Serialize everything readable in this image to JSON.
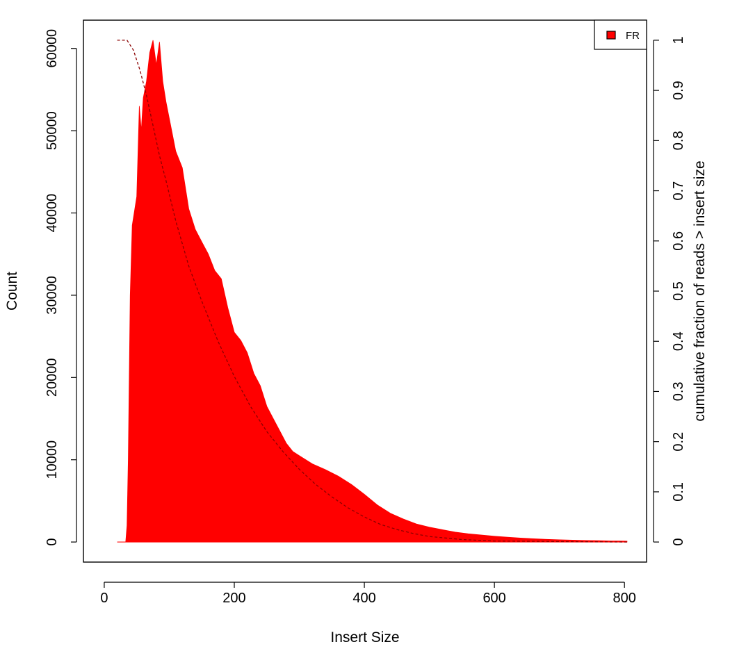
{
  "chart_data": {
    "type": "bar",
    "xlabel": "Insert Size",
    "ylabel": "Count",
    "y2label": "cumulative fraction of reads > insert size",
    "xlim": [
      -32,
      834
    ],
    "ylim": [
      -2440,
      63440
    ],
    "y2lim": [
      -0.04,
      1.04
    ],
    "xticks": [
      0,
      200,
      400,
      600,
      800
    ],
    "yticks": [
      0,
      10000,
      20000,
      30000,
      40000,
      50000,
      60000
    ],
    "y2ticks": [
      0,
      0.1,
      0.2,
      0.3,
      0.4,
      0.5,
      0.6,
      0.7,
      0.8,
      0.9,
      1
    ],
    "legend": {
      "position": "top-right",
      "entries": [
        "FR"
      ]
    },
    "grid": false,
    "series": [
      {
        "name": "FR",
        "kind": "histogram",
        "color": "#ff0000",
        "envelope_points": [
          [
            20,
            0
          ],
          [
            33,
            0
          ],
          [
            35,
            2000
          ],
          [
            37,
            10000
          ],
          [
            40,
            30000
          ],
          [
            43,
            38500
          ],
          [
            46,
            40000
          ],
          [
            50,
            42000
          ],
          [
            54,
            53000
          ],
          [
            57,
            50000
          ],
          [
            60,
            54000
          ],
          [
            65,
            56000
          ],
          [
            70,
            59500
          ],
          [
            75,
            61000
          ],
          [
            80,
            58000
          ],
          [
            85,
            60800
          ],
          [
            90,
            56000
          ],
          [
            95,
            53500
          ],
          [
            100,
            51500
          ],
          [
            110,
            47500
          ],
          [
            120,
            45500
          ],
          [
            130,
            40500
          ],
          [
            140,
            38000
          ],
          [
            150,
            36500
          ],
          [
            160,
            35000
          ],
          [
            170,
            33000
          ],
          [
            180,
            32000
          ],
          [
            190,
            28500
          ],
          [
            200,
            25500
          ],
          [
            210,
            24500
          ],
          [
            220,
            23000
          ],
          [
            230,
            20500
          ],
          [
            240,
            19000
          ],
          [
            250,
            16500
          ],
          [
            260,
            15000
          ],
          [
            270,
            13500
          ],
          [
            280,
            12000
          ],
          [
            290,
            11000
          ],
          [
            300,
            10500
          ],
          [
            320,
            9500
          ],
          [
            340,
            8800
          ],
          [
            360,
            8000
          ],
          [
            380,
            7000
          ],
          [
            400,
            5800
          ],
          [
            420,
            4500
          ],
          [
            440,
            3500
          ],
          [
            460,
            2800
          ],
          [
            480,
            2200
          ],
          [
            500,
            1800
          ],
          [
            520,
            1500
          ],
          [
            540,
            1200
          ],
          [
            560,
            1000
          ],
          [
            580,
            850
          ],
          [
            600,
            700
          ],
          [
            620,
            580
          ],
          [
            640,
            480
          ],
          [
            660,
            400
          ],
          [
            680,
            320
          ],
          [
            700,
            270
          ],
          [
            720,
            230
          ],
          [
            740,
            190
          ],
          [
            760,
            160
          ],
          [
            780,
            130
          ],
          [
            800,
            110
          ],
          [
            804,
            100
          ]
        ]
      },
      {
        "name": "cumulative",
        "kind": "dashed-line",
        "axis": "right",
        "color": "#000000",
        "points": [
          [
            20,
            1.0
          ],
          [
            35,
            1.0
          ],
          [
            45,
            0.98
          ],
          [
            55,
            0.94
          ],
          [
            65,
            0.89
          ],
          [
            75,
            0.83
          ],
          [
            85,
            0.77
          ],
          [
            95,
            0.72
          ],
          [
            110,
            0.64
          ],
          [
            130,
            0.55
          ],
          [
            150,
            0.48
          ],
          [
            175,
            0.4
          ],
          [
            200,
            0.33
          ],
          [
            225,
            0.27
          ],
          [
            250,
            0.22
          ],
          [
            275,
            0.18
          ],
          [
            300,
            0.145
          ],
          [
            325,
            0.115
          ],
          [
            350,
            0.09
          ],
          [
            375,
            0.068
          ],
          [
            400,
            0.05
          ],
          [
            425,
            0.035
          ],
          [
            450,
            0.025
          ],
          [
            475,
            0.017
          ],
          [
            500,
            0.011
          ],
          [
            550,
            0.005
          ],
          [
            600,
            0.002
          ],
          [
            700,
            0.001
          ],
          [
            804,
            0.0
          ]
        ]
      }
    ]
  }
}
